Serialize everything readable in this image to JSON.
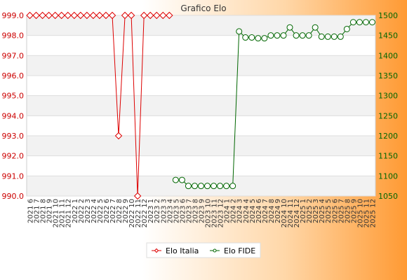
{
  "chart_data": {
    "type": "line",
    "title": "Grafico Elo",
    "x": [
      "2021 6",
      "2021 7",
      "2021 8",
      "2021 9",
      "2021 10",
      "2021 11",
      "2021 12",
      "2022 1",
      "2022 2",
      "2022 3",
      "2022 4",
      "2022 5",
      "2022 6",
      "2022 7",
      "2022 8",
      "2022 9",
      "2022 10",
      "2022 11",
      "2022 12",
      "2023 1",
      "2023 2",
      "2023 3",
      "2023 4",
      "2023 5",
      "2023 6",
      "2023 7",
      "2023 8",
      "2023 9",
      "2023 10",
      "2023 11",
      "2023 12",
      "2024 1",
      "2024 2",
      "2024 3",
      "2024 4",
      "2024 5",
      "2024 6",
      "2024 7",
      "2024 8",
      "2024 9",
      "2024 10",
      "2024 11",
      "2024 12",
      "2025 1",
      "2025 2",
      "2025 3",
      "2025 4",
      "2025 5",
      "2025 6",
      "2025 7",
      "2025 8",
      "2025 9",
      "2025 10",
      "2025 11",
      "2025 12"
    ],
    "y_left": {
      "min": 990,
      "max": 999,
      "ticks": [
        "990.0",
        "991.0",
        "992.0",
        "993.0",
        "994.0",
        "995.0",
        "996.0",
        "997.0",
        "998.0",
        "999.0"
      ],
      "color": "#cc0000"
    },
    "y_right": {
      "min": 1050,
      "max": 1500,
      "ticks": [
        "1050",
        "1100",
        "1150",
        "1200",
        "1250",
        "1300",
        "1350",
        "1400",
        "1450",
        "1500"
      ],
      "color": "#006600"
    },
    "series": [
      {
        "name": "Elo Italia",
        "axis": "left",
        "color": "#dd0000",
        "marker": "diamond",
        "values": [
          999,
          999,
          999,
          999,
          999,
          999,
          999,
          999,
          999,
          999,
          999,
          999,
          999,
          999,
          993,
          999,
          999,
          990,
          999,
          999,
          999,
          999,
          999,
          null,
          null,
          null,
          null,
          null,
          null,
          null,
          null,
          null,
          null,
          null,
          null,
          null,
          null,
          null,
          null,
          null,
          null,
          null,
          null,
          null,
          null,
          null,
          null,
          null,
          null,
          null,
          null,
          null,
          null,
          null,
          null
        ]
      },
      {
        "name": "Elo FIDE",
        "axis": "right",
        "color": "#006600",
        "marker": "circle",
        "values": [
          null,
          null,
          null,
          null,
          null,
          null,
          null,
          null,
          null,
          null,
          null,
          null,
          null,
          null,
          null,
          null,
          null,
          null,
          null,
          null,
          null,
          null,
          null,
          1090,
          1090,
          1075,
          1075,
          1075,
          1075,
          1075,
          1075,
          1075,
          1075,
          1460,
          1445,
          1445,
          1443,
          1443,
          1450,
          1450,
          1450,
          1470,
          1450,
          1450,
          1450,
          1470,
          1447,
          1447,
          1447,
          1447,
          1466,
          1483,
          1483,
          1483,
          1483
        ]
      }
    ],
    "legend": "bottom-center",
    "grid": true
  }
}
